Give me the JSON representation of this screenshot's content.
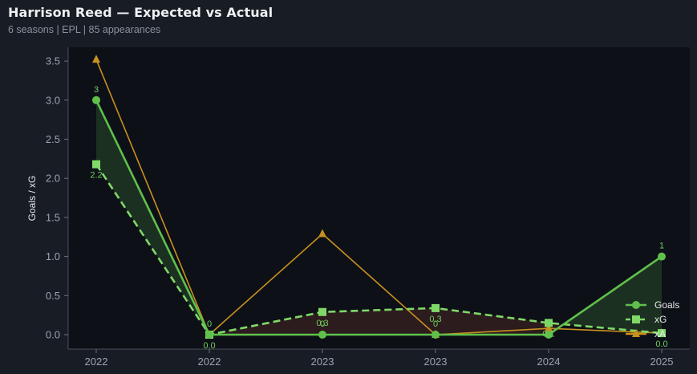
{
  "header": {
    "title": "Harrison Reed — Expected vs Actual",
    "subtitle": "6 seasons | EPL | 85 appearances"
  },
  "colors": {
    "background": "#181c24",
    "plot_background": "#0d1017",
    "goals": "#5fc14b",
    "xg": "#7fd868",
    "xa": "#c8901f",
    "over_fill": "#1d3323",
    "under_fill": "#2e1d1f"
  },
  "chart_data": {
    "type": "line",
    "title": "Harrison Reed — Expected vs Actual",
    "subtitle": "6 seasons | EPL | 85 appearances",
    "xlabel": "",
    "ylabel": "Goals / xG",
    "categories": [
      "2022",
      "2022",
      "2023",
      "2023",
      "2024",
      "2025"
    ],
    "ylim": [
      -0.15,
      3.65
    ],
    "yticks": [
      "0.0",
      "0.5",
      "1.0",
      "1.5",
      "2.0",
      "2.5",
      "3.0",
      "3.5"
    ],
    "grid": false,
    "legend_position": "lower right",
    "series": [
      {
        "name": "Goals",
        "marker": "circle",
        "style": "solid",
        "values": [
          3,
          0,
          0,
          0,
          0,
          1
        ],
        "labels": [
          "3",
          "0",
          "0",
          "0",
          "0",
          "1"
        ]
      },
      {
        "name": "xG",
        "marker": "square",
        "style": "dashed",
        "values": [
          2.18,
          0.0,
          0.29,
          0.34,
          0.15,
          0.02
        ],
        "labels": [
          "2.2",
          "0.0",
          "0.3",
          "0.3",
          "0.1",
          "0.0"
        ]
      },
      {
        "name": "xA",
        "marker": "triangle",
        "style": "solid",
        "values": [
          3.52,
          0.0,
          1.29,
          0.0,
          0.08,
          0.02
        ]
      }
    ]
  }
}
